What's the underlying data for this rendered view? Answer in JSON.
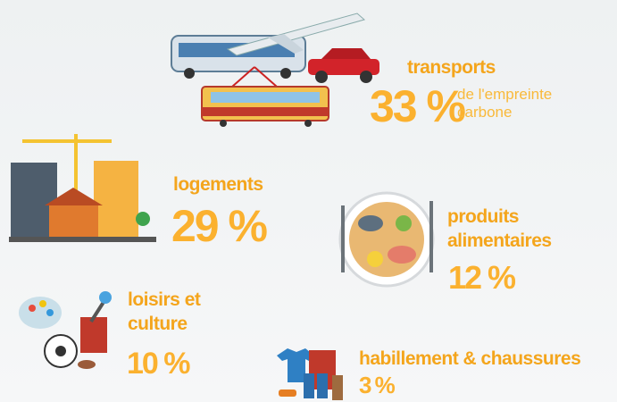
{
  "items": [
    {
      "label": "transports",
      "percent": "33 %",
      "note": "de l'empreinte carbone"
    },
    {
      "label": "logements",
      "percent": "29 %"
    },
    {
      "label": "produits alimentaires",
      "percent": "12 %"
    },
    {
      "label": "loisirs et culture",
      "percent": "10 %"
    },
    {
      "label": "habillement & chaussures",
      "percent": "3 %"
    }
  ]
}
